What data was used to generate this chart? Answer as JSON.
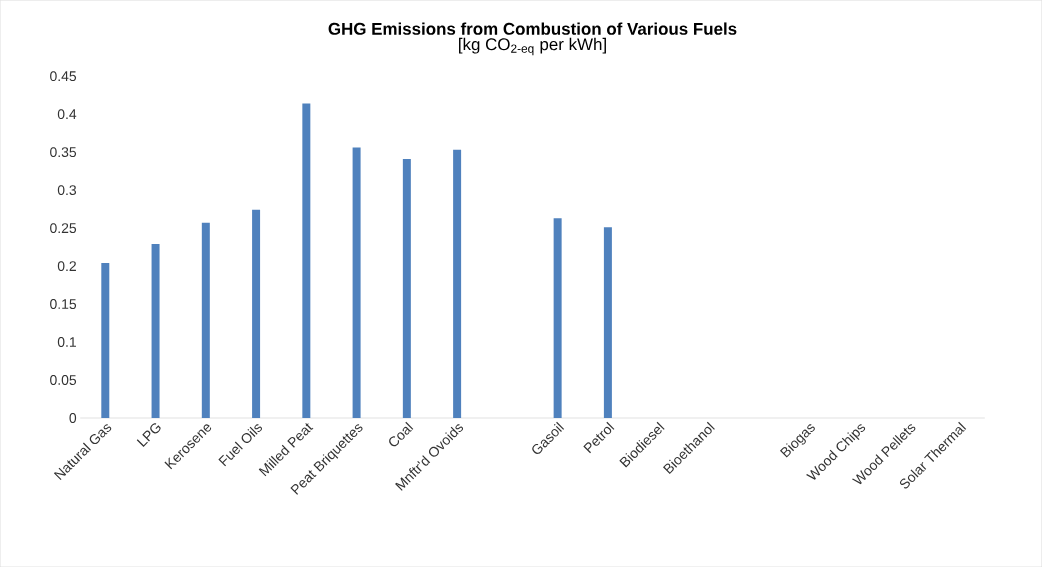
{
  "chart_data": {
    "type": "bar",
    "title": "GHG Emissions from Combustion of Various Fuels",
    "subtitle": "[kg CO$_{2-eq}$ per kWh]",
    "categories": [
      "Natural Gas",
      "LPG",
      "Kerosene",
      "Fuel Oils",
      "Milled Peat",
      "Peat Briquettes",
      "Coal",
      "Mnftr'd Ovoids",
      null,
      "Gasoil",
      "Petrol",
      "Biodiesel",
      "Bioethanol",
      null,
      "Biogas",
      "Wood Chips",
      "Wood Pellets",
      "Solar Thermal"
    ],
    "values": [
      0.204,
      0.229,
      0.257,
      0.274,
      0.414,
      0.356,
      0.341,
      0.353,
      null,
      0.263,
      0.251,
      0,
      0,
      null,
      0,
      0,
      0,
      0
    ],
    "color": "#4f81bd",
    "ylim": [
      0,
      0.45
    ],
    "yticks": [
      0,
      0.05,
      0.1,
      0.15,
      0.2,
      0.25,
      0.3,
      0.35,
      0.4,
      0.45
    ],
    "grid": false
  }
}
